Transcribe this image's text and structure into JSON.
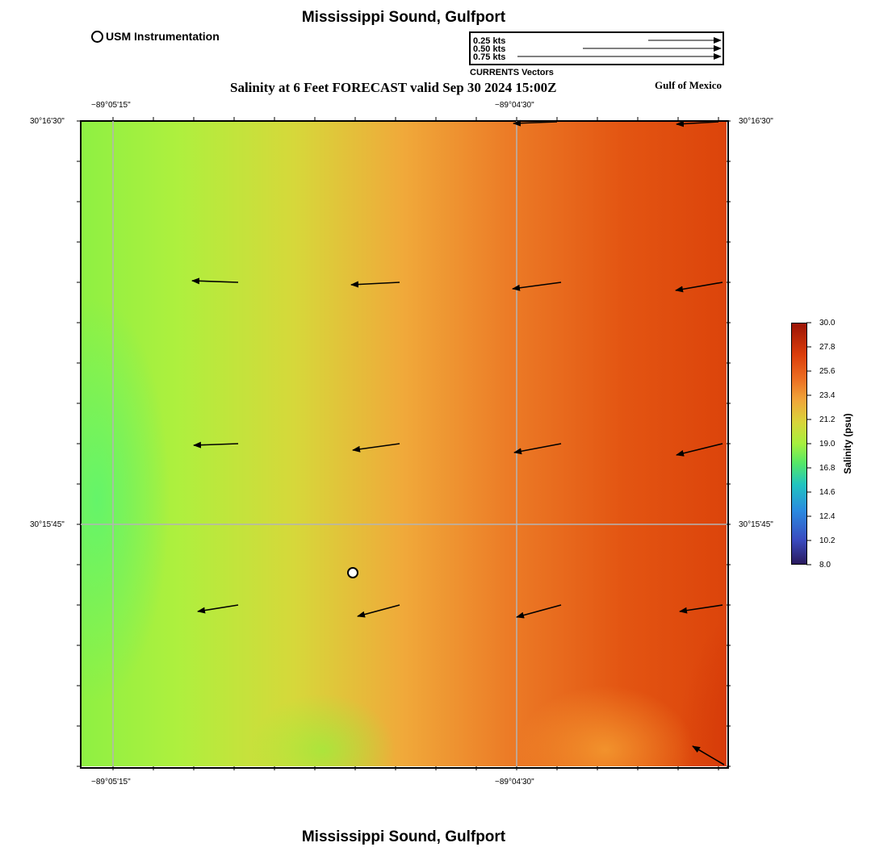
{
  "title": "Mississippi Sound, Gulfport",
  "bottom_title": "Mississippi Sound, Gulfport",
  "subtitle": "Salinity at 6 Feet FORECAST valid Sep 30 2024 15:00Z",
  "region": "Gulf of Mexico",
  "station_legend": "USM Instrumentation",
  "vector_legend": {
    "entries": [
      "0.25 kts",
      "0.50 kts",
      "0.75 kts"
    ],
    "caption": "CURRENTS Vectors"
  },
  "axes": {
    "lon_labels": [
      "−89°05'15\"",
      "−89°04'30\""
    ],
    "lat_labels": [
      "30°16'30\"",
      "30°15'45\""
    ]
  },
  "colorbar": {
    "title": "Salinity (psu)",
    "ticks": [
      "30.0",
      "27.8",
      "25.6",
      "23.4",
      "21.2",
      "19.0",
      "16.8",
      "14.6",
      "12.4",
      "10.2",
      "8.0"
    ]
  },
  "colors": {
    "background": "#ffffff",
    "grid": "#b4b4b4",
    "frame": "#000000",
    "vector": "#000000"
  }
}
